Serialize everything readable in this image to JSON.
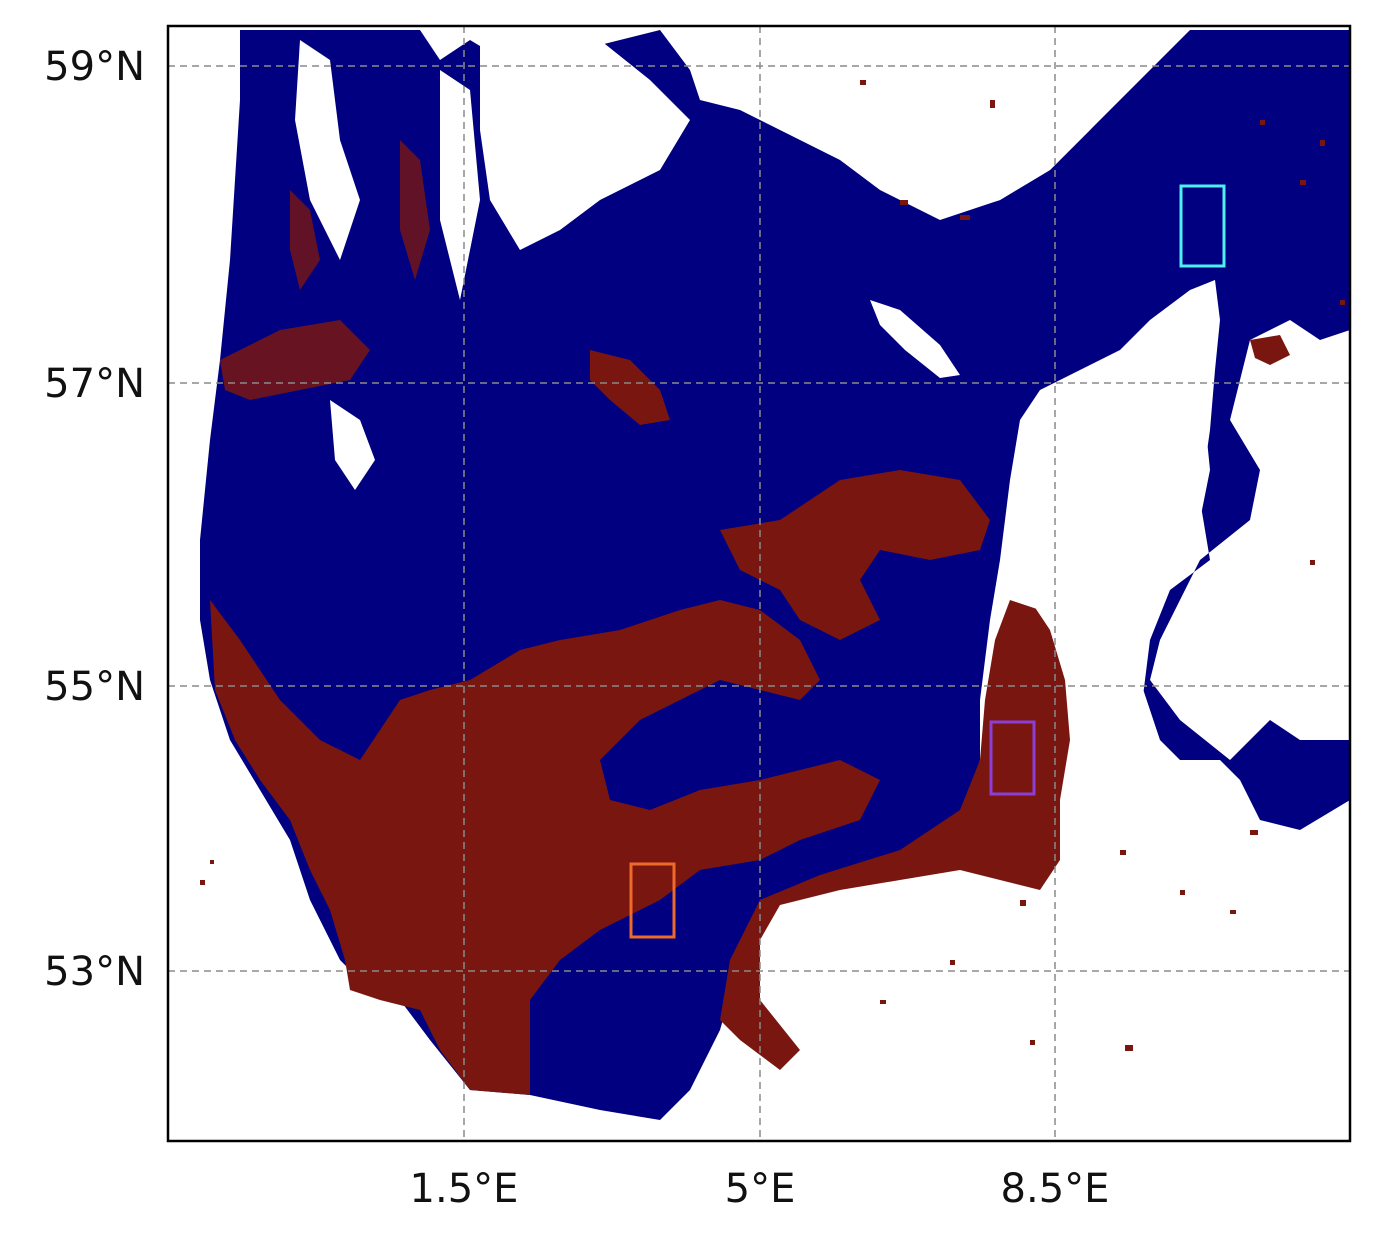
{
  "map": {
    "type": "classified-raster-map",
    "grid": true,
    "colors": {
      "class_a": "#000080",
      "class_b": "#7a1610",
      "land": "#ffffff",
      "frame": "#000000",
      "grid": "#8a8a8a"
    },
    "x_ticks": [
      {
        "value": 1.5,
        "label": "1.5°E"
      },
      {
        "value": 5,
        "label": "5°E"
      },
      {
        "value": 8.5,
        "label": "8.5°E"
      }
    ],
    "y_ticks": [
      {
        "value": 59,
        "label": "59°N"
      },
      {
        "value": 57,
        "label": "57°N"
      },
      {
        "value": 55,
        "label": "55°N"
      },
      {
        "value": 53,
        "label": "53°N"
      }
    ],
    "regions": [
      {
        "name": "orange-box",
        "color": "#ee6a2b",
        "lon": [
          3.5,
          4.0
        ],
        "lat": [
          53.22,
          53.7
        ]
      },
      {
        "name": "purple-box",
        "color": "#8c3fd6",
        "lon": [
          7.8,
          8.3
        ],
        "lat": [
          54.18,
          54.67
        ]
      },
      {
        "name": "cyan-box",
        "color": "#4ef0f0",
        "lon": [
          10.0,
          10.5
        ],
        "lat": [
          57.78,
          58.3
        ]
      }
    ]
  }
}
